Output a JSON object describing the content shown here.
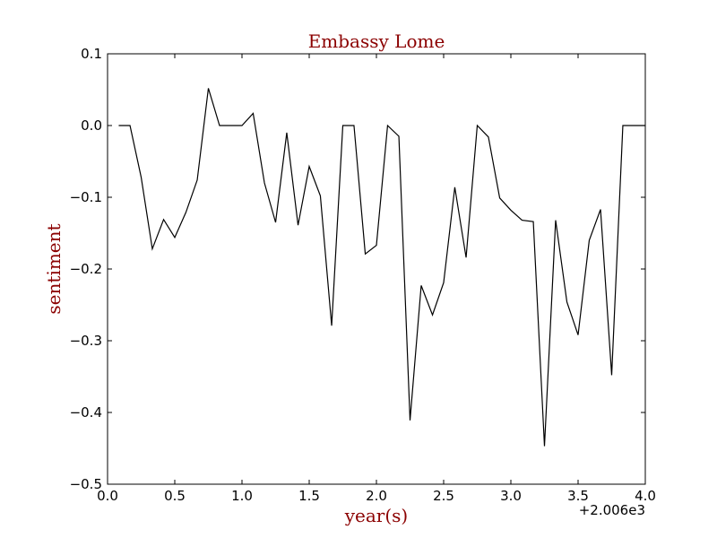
{
  "chart_data": {
    "type": "line",
    "title": "Embassy Lome",
    "xlabel": "year(s)",
    "ylabel": "sentiment",
    "x_offset_label": "+2.006e3",
    "xlim": [
      0.0,
      4.0
    ],
    "ylim": [
      -0.5,
      0.1
    ],
    "x_ticks": [
      "0.0",
      "0.5",
      "1.0",
      "1.5",
      "2.0",
      "2.5",
      "3.0",
      "3.5",
      "4.0"
    ],
    "y_ticks": [
      "0.1",
      "0.0",
      "−0.1",
      "−0.2",
      "−0.3",
      "−0.4",
      "−0.5"
    ],
    "grid": false,
    "line_color": "#000000",
    "label_color": "#8b0000",
    "series": [
      {
        "x": [
          0.083,
          0.167,
          0.25,
          0.333,
          0.417,
          0.5,
          0.583,
          0.667,
          0.75,
          0.833,
          0.917,
          1.0,
          1.083,
          1.167,
          1.25,
          1.333,
          1.417,
          1.5,
          1.583,
          1.667,
          1.75,
          1.833,
          1.917,
          2.0,
          2.083,
          2.167,
          2.25,
          2.333,
          2.417,
          2.5,
          2.583,
          2.667,
          2.75,
          2.833,
          2.917,
          3.0,
          3.083,
          3.167,
          3.25,
          3.333,
          3.417,
          3.5,
          3.583,
          3.667,
          3.75,
          3.833,
          3.917,
          4.0
        ],
        "y": [
          0.0,
          0.0,
          -0.072,
          -0.172,
          -0.131,
          -0.156,
          -0.121,
          -0.076,
          0.052,
          0.0,
          0.0,
          0.0,
          0.017,
          -0.08,
          -0.135,
          -0.01,
          -0.139,
          -0.057,
          -0.098,
          -0.279,
          0.0,
          0.0,
          -0.179,
          -0.167,
          0.0,
          -0.015,
          -0.411,
          -0.223,
          -0.264,
          -0.219,
          -0.086,
          -0.184,
          0.0,
          -0.016,
          -0.101,
          -0.118,
          -0.132,
          -0.134,
          -0.447,
          -0.132,
          -0.246,
          -0.292,
          -0.16,
          -0.117,
          -0.348,
          0.0,
          0.0,
          0.0
        ]
      }
    ]
  }
}
